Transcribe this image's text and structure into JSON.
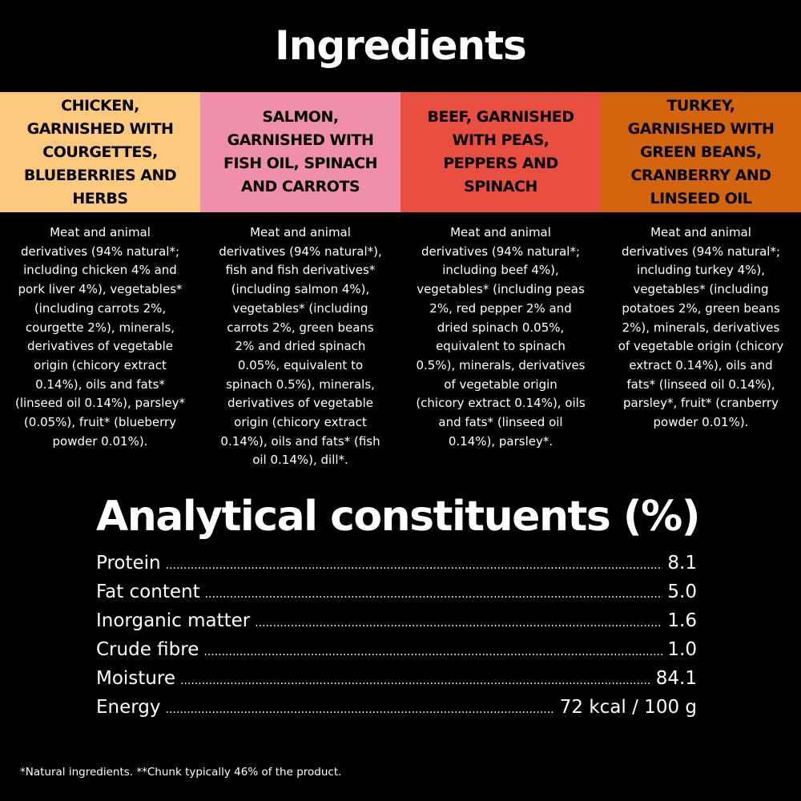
{
  "title": "Ingredients",
  "recipes": [
    {
      "name": "CHICKEN, GARNISHED WITH COURGETTES, BLUEBERRIES AND HERBS",
      "name_lines": [
        "CHICKEN,",
        "GARNISHED WITH",
        "COURGETTES,",
        "BLUEBERRIES AND",
        "HERBS"
      ],
      "color": "#fdc97f",
      "lines": [
        "Meat and animal",
        "derivatives (94% natural*;",
        "including chicken 4% and",
        "pork liver 4%), vegetables*",
        "(including carrots 2%,",
        "courgette 2%), minerals,",
        "derivatives of vegetable",
        "origin (chicory extract",
        "0.14%), oils and fats*",
        "(linseed oil 0.14%), parsley*",
        "(0.05%), fruit* (blueberry",
        "powder 0.01%)."
      ]
    },
    {
      "name": "SALMON, GARNISHED WITH FISH OIL, SPINACH AND CARROTS",
      "name_lines": [
        "SALMON,",
        "GARNISHED WITH",
        "FISH OIL, SPINACH",
        "AND CARROTS"
      ],
      "color": "#f08fab",
      "lines": [
        "Meat and animal",
        "derivatives (94% natural*),",
        "fish and fish derivatives*",
        "(including salmon 4%),",
        "vegetables* (including",
        "carrots 2%, green beans",
        "2% and dried spinach",
        "0.05%, equivalent to",
        "spinach 0.5%), minerals,",
        "derivatives of vegetable",
        "origin (chicory extract",
        "0.14%), oils and fats* (fish",
        "oil 0.14%), dill*."
      ]
    },
    {
      "name": "BEEF, GARNISHED WITH PEAS, PEPPERS AND SPINACH",
      "name_lines": [
        "BEEF, GARNISHED",
        "WITH PEAS,",
        "PEPPERS AND",
        "SPINACH"
      ],
      "color": "#e84f40",
      "lines": [
        "Meat and animal",
        "derivatives (94% natural*;",
        "including beef 4%),",
        "vegetables* (including peas",
        "2%, red pepper 2% and",
        "dried spinach 0.05%,",
        "equivalent to spinach",
        "0.5%), minerals, derivatives",
        "of vegetable origin",
        "(chicory extract 0.14%), oils",
        "and fats* (linseed oil",
        "0.14%), parsley*."
      ]
    },
    {
      "name": "TURKEY, GARNISHED WITH GREEN BEANS, CRANBERRY AND LINSEED OIL",
      "name_lines": [
        "TURKEY,",
        "GARNISHED WITH",
        "GREEN BEANS,",
        "CRANBERRY AND",
        "LINSEED OIL"
      ],
      "color": "#d3650f",
      "lines": [
        "Meat and animal",
        "derivatives (94% natural*;",
        "including turkey 4%),",
        "vegetables* (including",
        "potatoes 2%, green beans",
        "2%), minerals, derivatives",
        "of vegetable origin (chicory",
        "extract 0.14%), oils and",
        "fats* (linseed oil 0.14%),",
        "parsley*, fruit* (cranberry",
        "powder 0.01%)."
      ]
    }
  ],
  "analytical": {
    "title": "Analytical constituents (%)",
    "rows": [
      {
        "label": "Protein",
        "value": "8.1"
      },
      {
        "label": "Fat content",
        "value": "5.0"
      },
      {
        "label": "Inorganic matter",
        "value": "1.6"
      },
      {
        "label": "Crude fibre",
        "value": "1.0"
      },
      {
        "label": "Moisture",
        "value": "84.1"
      },
      {
        "label": "Energy",
        "value": "72 kcal / 100 g"
      }
    ]
  },
  "footnote": "*Natural ingredients. **Chunk typically 46% of the product."
}
